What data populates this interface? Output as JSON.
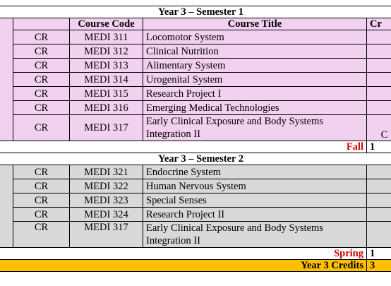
{
  "top_strip": "",
  "headers": {
    "code": "Course Code",
    "title": "Course Title",
    "credits_partial": "Cr"
  },
  "sem1": {
    "title": "Year 3 – Semester 1",
    "rows": [
      {
        "type": "CR",
        "code": "MEDI 311",
        "title": "Locomotor System",
        "credit": ""
      },
      {
        "type": "CR",
        "code": "MEDI 312",
        "title": "Clinical Nutrition",
        "credit": ""
      },
      {
        "type": "CR",
        "code": "MEDI 313",
        "title": "Alimentary System",
        "credit": ""
      },
      {
        "type": "CR",
        "code": "MEDI 314",
        "title": "Urogenital System",
        "credit": ""
      },
      {
        "type": "CR",
        "code": "MEDI 315",
        "title": "Research Project I",
        "credit": ""
      },
      {
        "type": "CR",
        "code": "MEDI 316",
        "title": "Emerging Medical Technologies",
        "credit": ""
      },
      {
        "type": "CR",
        "code": "MEDI 317",
        "title": "Early Clinical Exposure and Body Systems Integration II",
        "credit": "C"
      }
    ],
    "total_label": "Fall",
    "total_value": "1"
  },
  "sem2": {
    "title": "Year 3 – Semester 2",
    "rows": [
      {
        "type": "CR",
        "code": "MEDI 321",
        "title": "Endocrine System",
        "credit": ""
      },
      {
        "type": "CR",
        "code": "MEDI 322",
        "title": "Human Nervous System",
        "credit": ""
      },
      {
        "type": "CR",
        "code": "MEDI 323",
        "title": "Special Senses",
        "credit": ""
      },
      {
        "type": "CR",
        "code": "MEDI 324",
        "title": "Research Project II",
        "credit": ""
      },
      {
        "type": "CR",
        "code": "MEDI 317",
        "title": "Early Clinical Exposure and Body Systems Integration II",
        "credit": ""
      }
    ],
    "total_label": "Spring",
    "total_value": "1"
  },
  "year_total": {
    "label": "Year 3 Credits",
    "value": "3"
  },
  "colors": {
    "sem1_fill": "#f2d0f0",
    "sem2_fill": "#d9d9d9",
    "total_fill": "#ffc000",
    "term_label": "#d00000"
  }
}
